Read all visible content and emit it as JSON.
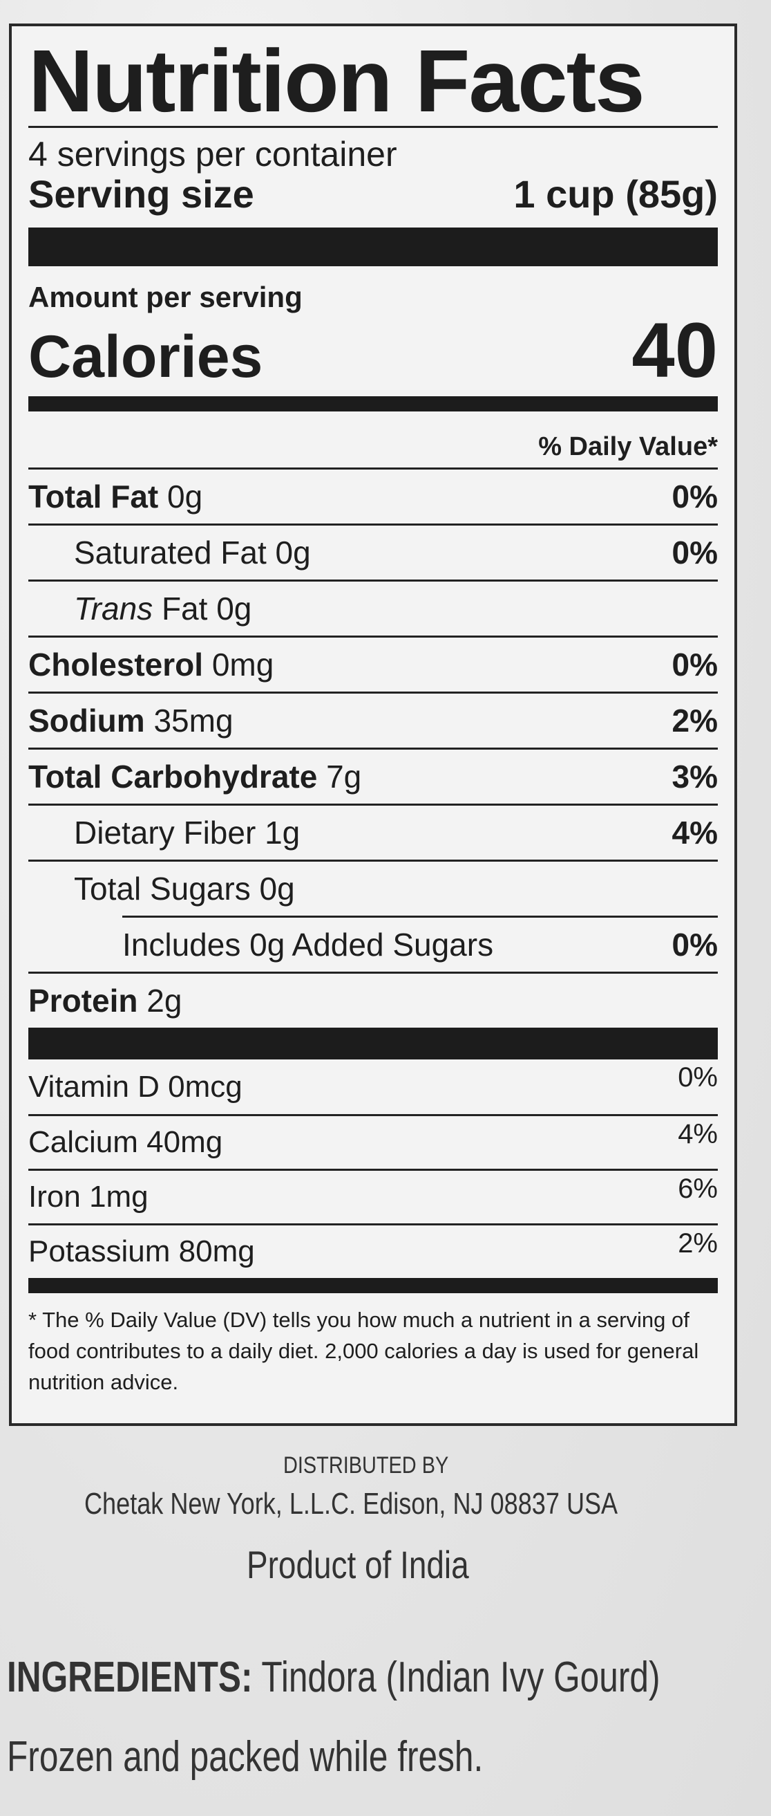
{
  "label": {
    "title": "Nutrition Facts",
    "servings_per_container": "4 servings per container",
    "serving_size_label": "Serving size",
    "serving_size_value": "1 cup (85g)",
    "amount_per_serving": "Amount per serving",
    "calories_label": "Calories",
    "calories_value": "40",
    "daily_value_header": "% Daily Value*",
    "nutrients": [
      {
        "name": "Total Fat",
        "amount": "0g",
        "dv": "0%",
        "bold": true,
        "indent": 0
      },
      {
        "name": "Saturated Fat",
        "amount": "0g",
        "dv": "0%",
        "bold": false,
        "indent": 1
      },
      {
        "name": "Trans",
        "name_suffix": " Fat",
        "amount": "0g",
        "dv": "",
        "bold": false,
        "italic": true,
        "indent": 1
      },
      {
        "name": "Cholesterol",
        "amount": "0mg",
        "dv": "0%",
        "bold": true,
        "indent": 0
      },
      {
        "name": "Sodium",
        "amount": "35mg",
        "dv": "2%",
        "bold": true,
        "indent": 0
      },
      {
        "name": "Total Carbohydrate",
        "amount": "7g",
        "dv": "3%",
        "bold": true,
        "indent": 0
      },
      {
        "name": "Dietary Fiber",
        "amount": "1g",
        "dv": "4%",
        "bold": false,
        "indent": 1
      },
      {
        "name": "Total Sugars",
        "amount": "0g",
        "dv": "",
        "bold": false,
        "indent": 1
      },
      {
        "name": "Includes 0g Added Sugars",
        "amount": "",
        "dv": "0%",
        "bold": false,
        "indent": 2
      },
      {
        "name": "Protein",
        "amount": "2g",
        "dv": "",
        "bold": true,
        "indent": 0
      }
    ],
    "vitamins": [
      {
        "name": "Vitamin D",
        "amount": "0mcg",
        "dv": "0%"
      },
      {
        "name": "Calcium",
        "amount": "40mg",
        "dv": "4%"
      },
      {
        "name": "Iron",
        "amount": "1mg",
        "dv": "6%"
      },
      {
        "name": "Potassium",
        "amount": "80mg",
        "dv": "2%"
      }
    ],
    "footnote": "* The % Daily Value (DV) tells you how much a nutrient in a serving of food contributes to a daily diet. 2,000 calories a day is used for general nutrition advice."
  },
  "package": {
    "distributed_by": "DISTRIBUTED BY",
    "distributor_address": "Chetak New York, L.L.C. Edison, NJ 08837 USA",
    "origin": "Product of India",
    "ingredients_label": "INGREDIENTS:",
    "ingredients_text": " Tindora (Indian Ivy Gourd)",
    "note": "Frozen and packed while fresh."
  }
}
